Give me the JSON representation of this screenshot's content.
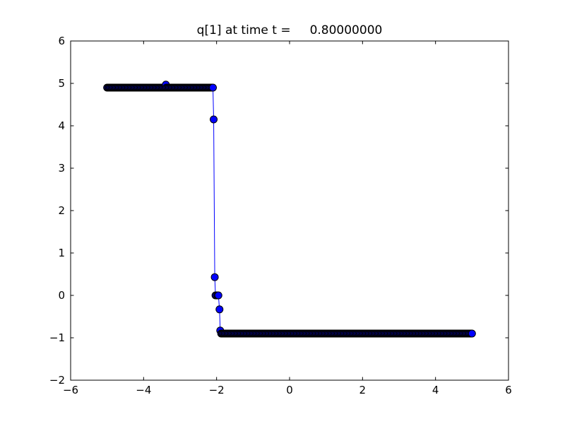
{
  "window": {
    "background": "#ffffff"
  },
  "chart_data": {
    "type": "line",
    "title": "q[1] at time t =     0.80000000",
    "xlabel": "",
    "ylabel": "",
    "xlim": [
      -6,
      6
    ],
    "ylim": [
      -2,
      6
    ],
    "x_ticks": [
      -6,
      -4,
      -2,
      0,
      2,
      4,
      6
    ],
    "y_ticks": [
      -2,
      -1,
      0,
      1,
      2,
      3,
      4,
      5,
      6
    ],
    "grid": false,
    "legend": null,
    "axes_color": "#000000",
    "line_color": "#0000ff",
    "marker": {
      "shape": "circle",
      "face_color": "#0000ff",
      "edge_color": "#000000",
      "radius_px": 5
    },
    "series": [
      {
        "name": "q[1]",
        "plateaus": [
          {
            "x_start": -5.0,
            "x_end": -2.125,
            "y": 4.9,
            "n": 116
          },
          {
            "x_start": -1.875,
            "x_end": 5.0,
            "y": -0.9,
            "n": 276
          }
        ],
        "transition_points": [
          [
            -3.39,
            4.97
          ],
          [
            -2.1,
            4.9
          ],
          [
            -2.08,
            4.15
          ],
          [
            -2.05,
            0.43
          ],
          [
            -2.03,
            0.0
          ],
          [
            -2.0,
            0.0
          ],
          [
            -1.97,
            0.0
          ],
          [
            -1.95,
            0.0
          ],
          [
            -1.92,
            -0.33
          ],
          [
            -1.9,
            -0.83
          ]
        ]
      }
    ]
  }
}
